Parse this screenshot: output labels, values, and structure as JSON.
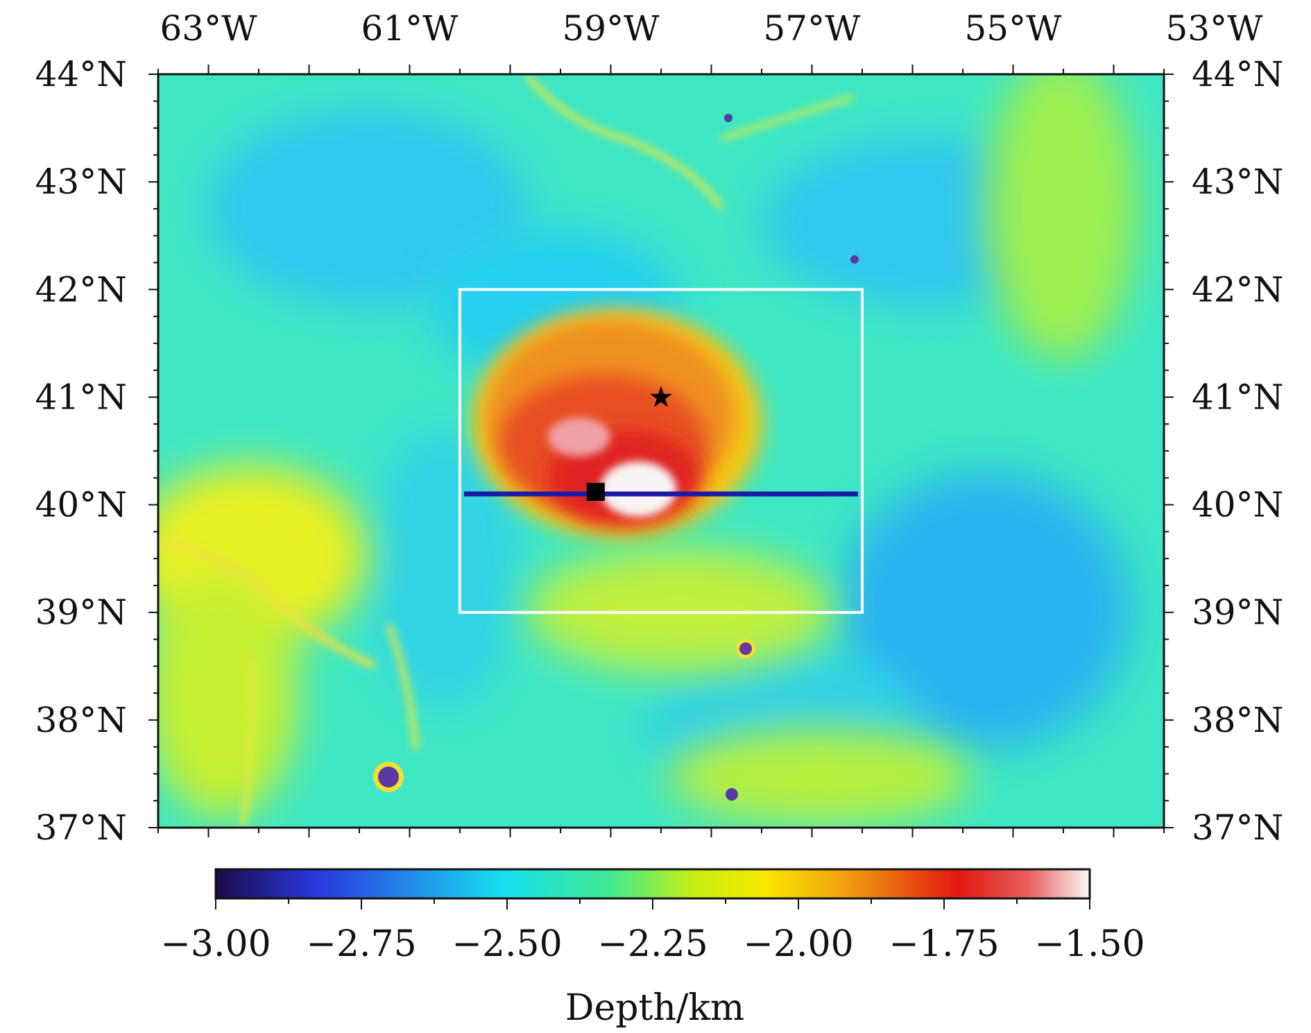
{
  "map": {
    "lon_range_deg": [
      -63.5,
      -53.5
    ],
    "lat_range_deg": [
      37,
      44
    ],
    "top_lon_labels": [
      "63°W",
      "61°W",
      "59°W",
      "57°W",
      "55°W",
      "53°W"
    ],
    "top_lon_values": [
      -63,
      -61,
      -59,
      -57,
      -55,
      -53
    ],
    "lat_labels": [
      "44°N",
      "43°N",
      "42°N",
      "41°N",
      "40°N",
      "39°N",
      "38°N",
      "37°N"
    ],
    "lat_values": [
      44,
      43,
      42,
      41,
      40,
      39,
      38,
      37
    ],
    "study_box": {
      "lon_min": -60.5,
      "lon_max": -56.5,
      "lat_min": 39,
      "lat_max": 42,
      "color": "#ffffff"
    },
    "profile_line": {
      "lat": 40.1,
      "lon_start": -60.5,
      "lon_end": -56.5,
      "color": "#1a1aa6"
    },
    "star_marker": {
      "lon": -58.5,
      "lat": 41.0,
      "symbol": "★",
      "name": "star"
    },
    "square_marker": {
      "lon": -59.15,
      "lat": 40.12,
      "name": "square"
    }
  },
  "colorbar": {
    "title": "Depth/km",
    "min": -3.0,
    "max": -1.5,
    "tick_labels": [
      "−3.00",
      "−2.75",
      "−2.50",
      "−2.25",
      "−2.00",
      "−1.75",
      "−1.50"
    ],
    "tick_values": [
      -3.0,
      -2.75,
      -2.5,
      -2.25,
      -2.0,
      -1.75,
      -1.5
    ],
    "colors": [
      "#1a0a4a",
      "#2a3ae0",
      "#18c8f0",
      "#20e8d8",
      "#40e880",
      "#b8f020",
      "#f8f000",
      "#f09010",
      "#e02818",
      "#e03030",
      "#f8f8f8"
    ]
  }
}
